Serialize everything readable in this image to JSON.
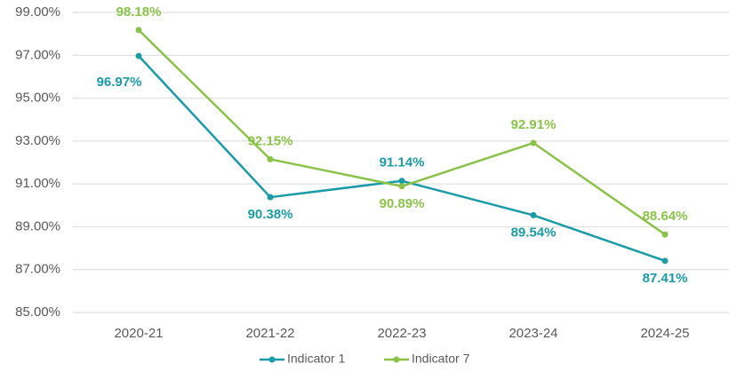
{
  "chart_data": {
    "type": "line",
    "categories": [
      "2020-21",
      "2021-22",
      "2022-23",
      "2023-24",
      "2024-25"
    ],
    "series": [
      {
        "name": "Indicator 1",
        "color": "#1a9ba8",
        "values": [
          96.97,
          90.38,
          91.14,
          89.54,
          87.41
        ],
        "value_labels": [
          "96.97%",
          "90.38%",
          "91.14%",
          "89.54%",
          "87.41%"
        ]
      },
      {
        "name": "Indicator 7",
        "color": "#8bc34a",
        "values": [
          98.18,
          92.15,
          90.89,
          92.91,
          88.64
        ],
        "value_labels": [
          "98.18%",
          "92.15%",
          "90.89%",
          "92.91%",
          "88.64%"
        ]
      }
    ],
    "ylim": [
      85,
      99
    ],
    "yticks": [
      {
        "value": 85,
        "label": "85.00%"
      },
      {
        "value": 87,
        "label": "87.00%"
      },
      {
        "value": 89,
        "label": "89.00%"
      },
      {
        "value": 91,
        "label": "91.00%"
      },
      {
        "value": 93,
        "label": "93.00%"
      },
      {
        "value": 95,
        "label": "95.00%"
      },
      {
        "value": 97,
        "label": "97.00%"
      },
      {
        "value": 99,
        "label": "99.00%"
      }
    ],
    "grid": true,
    "legend": "bottom"
  }
}
